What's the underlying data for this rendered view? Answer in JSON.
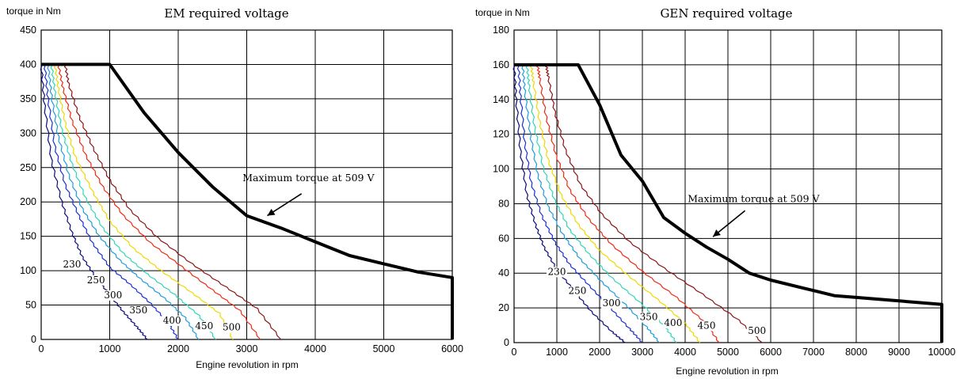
{
  "chart_data": [
    {
      "type": "line",
      "title": "EM required voltage",
      "ylabel": "torque in Nm",
      "xlabel": "Engine revolution in rpm",
      "xlim": [
        0,
        6000
      ],
      "ylim": [
        0,
        450
      ],
      "xticks": [
        "0",
        "1000",
        "2000",
        "3000",
        "4000",
        "5000",
        "6000"
      ],
      "yticks": [
        "0",
        "50",
        "100",
        "150",
        "200",
        "250",
        "300",
        "350",
        "400",
        "450"
      ],
      "grid": true,
      "annotation": {
        "text": "Maximum torque at 509 V",
        "text_at": [
          3900,
          230
        ],
        "arrow_from": [
          3800,
          212
        ],
        "arrow_to": [
          3300,
          180
        ]
      },
      "max_torque": {
        "x": [
          0,
          1000,
          1500,
          2000,
          2500,
          3000,
          3500,
          4000,
          4500,
          5000,
          5500,
          6000,
          6000
        ],
        "y": [
          400,
          400,
          330,
          272,
          222,
          180,
          162,
          142,
          122,
          110,
          98,
          90,
          0
        ]
      },
      "series": [
        {
          "color": "#0a0a7a",
          "x": [
            0,
            50,
            150,
            300,
            450,
            600,
            800,
            1000,
            1200,
            1400,
            1550
          ],
          "y": [
            400,
            340,
            260,
            200,
            155,
            120,
            90,
            65,
            40,
            18,
            0
          ]
        },
        {
          "color": "#1a2fd4",
          "x": [
            50,
            100,
            200,
            350,
            550,
            750,
            1000,
            1300,
            1600,
            1850,
            2000
          ],
          "y": [
            400,
            350,
            280,
            225,
            180,
            140,
            105,
            80,
            52,
            25,
            0
          ]
        },
        {
          "color": "#1f9be0",
          "x": [
            100,
            150,
            250,
            400,
            600,
            850,
            1150,
            1450,
            1800,
            2100,
            2300
          ],
          "y": [
            400,
            355,
            295,
            240,
            190,
            150,
            115,
            88,
            60,
            32,
            0
          ]
        },
        {
          "color": "#2fd6b5",
          "x": [
            150,
            200,
            300,
            450,
            650,
            900,
            1200,
            1550,
            1950,
            2300,
            2550
          ],
          "y": [
            400,
            360,
            305,
            255,
            205,
            162,
            125,
            95,
            65,
            35,
            0
          ]
        },
        {
          "color": "#f0d800",
          "x": [
            200,
            250,
            350,
            500,
            750,
            1000,
            1350,
            1750,
            2200,
            2600,
            2800
          ],
          "y": [
            400,
            365,
            315,
            265,
            215,
            172,
            132,
            100,
            68,
            38,
            0
          ]
        },
        {
          "color": "#ee2a12",
          "x": [
            250,
            320,
            450,
            650,
            900,
            1200,
            1600,
            2050,
            2500,
            2900,
            3200
          ],
          "y": [
            400,
            365,
            318,
            268,
            222,
            180,
            140,
            106,
            72,
            42,
            0
          ]
        },
        {
          "color": "#8b1414",
          "x": [
            350,
            400,
            550,
            750,
            1000,
            1300,
            1700,
            2200,
            2700,
            3150,
            3500
          ],
          "y": [
            400,
            372,
            325,
            280,
            232,
            188,
            148,
            110,
            76,
            45,
            0
          ]
        }
      ],
      "contour_labels": [
        {
          "text": "230",
          "x": 450,
          "y": 105
        },
        {
          "text": "250",
          "x": 800,
          "y": 82
        },
        {
          "text": "300",
          "x": 1050,
          "y": 60
        },
        {
          "text": "350",
          "x": 1420,
          "y": 38
        },
        {
          "text": "400",
          "x": 1910,
          "y": 23
        },
        {
          "text": "450",
          "x": 2380,
          "y": 15
        },
        {
          "text": "500",
          "x": 2780,
          "y": 13
        }
      ]
    },
    {
      "type": "line",
      "title": "GEN  required voltage",
      "ylabel": "torque in Nm",
      "xlabel": "Engine revolution in rpm",
      "xlim": [
        0,
        10000
      ],
      "ylim": [
        0,
        180
      ],
      "xticks": [
        "0",
        "1000",
        "2000",
        "3000",
        "4000",
        "5000",
        "6000",
        "7000",
        "8000",
        "9000",
        "10000"
      ],
      "yticks": [
        "0",
        "20",
        "40",
        "60",
        "80",
        "100",
        "120",
        "140",
        "160",
        "180"
      ],
      "grid": true,
      "annotation": {
        "text": "Maximum torque at 509 V",
        "text_at": [
          5600,
          81
        ],
        "arrow_from": [
          5400,
          76
        ],
        "arrow_to": [
          4650,
          61
        ]
      },
      "max_torque": {
        "x": [
          0,
          1500,
          2000,
          2500,
          3000,
          3500,
          4000,
          4500,
          5000,
          5500,
          6000,
          7000,
          7500,
          8000,
          9000,
          10000,
          10000
        ],
        "y": [
          160,
          160,
          137,
          108,
          93,
          72,
          63,
          55,
          48,
          40,
          36,
          30,
          27,
          26,
          24,
          22,
          0
        ]
      },
      "series": [
        {
          "color": "#0a0a7a",
          "x": [
            0,
            50,
            150,
            300,
            500,
            700,
            1000,
            1400,
            1800,
            2300,
            2600
          ],
          "y": [
            160,
            140,
            110,
            85,
            68,
            55,
            42,
            30,
            18,
            6,
            0
          ]
        },
        {
          "color": "#1a2fd4",
          "x": [
            100,
            150,
            250,
            400,
            650,
            950,
            1300,
            1750,
            2250,
            2700,
            3000
          ],
          "y": [
            160,
            142,
            115,
            92,
            73,
            58,
            45,
            33,
            20,
            8,
            0
          ]
        },
        {
          "color": "#1f9be0",
          "x": [
            200,
            250,
            380,
            550,
            800,
            1150,
            1550,
            2050,
            2600,
            3100,
            3400
          ],
          "y": [
            160,
            145,
            120,
            97,
            78,
            62,
            48,
            35,
            22,
            9,
            0
          ]
        },
        {
          "color": "#2fd6b5",
          "x": [
            300,
            350,
            480,
            680,
            950,
            1300,
            1750,
            2300,
            2950,
            3500,
            3800
          ],
          "y": [
            160,
            148,
            124,
            101,
            82,
            65,
            51,
            37,
            23,
            10,
            0
          ]
        },
        {
          "color": "#f0d800",
          "x": [
            400,
            450,
            600,
            800,
            1100,
            1500,
            2000,
            2650,
            3350,
            4000,
            4350
          ],
          "y": [
            160,
            150,
            127,
            105,
            85,
            68,
            53,
            39,
            25,
            11,
            0
          ]
        },
        {
          "color": "#ee2a12",
          "x": [
            550,
            600,
            750,
            980,
            1300,
            1750,
            2300,
            3000,
            3800,
            4450,
            4800
          ],
          "y": [
            160,
            152,
            130,
            108,
            88,
            71,
            56,
            41,
            26,
            12,
            0
          ]
        },
        {
          "color": "#8b1414",
          "x": [
            750,
            800,
            950,
            1200,
            1550,
            2050,
            2700,
            3500,
            4400,
            5250,
            5800
          ],
          "y": [
            160,
            153,
            133,
            111,
            91,
            74,
            58,
            43,
            28,
            13,
            0
          ]
        }
      ],
      "contour_labels": [
        {
          "text": "230",
          "x": 1000,
          "y": 39
        },
        {
          "text": "250",
          "x": 1480,
          "y": 28
        },
        {
          "text": "300",
          "x": 2280,
          "y": 21
        },
        {
          "text": "350",
          "x": 3150,
          "y": 13
        },
        {
          "text": "400",
          "x": 3720,
          "y": 9.5
        },
        {
          "text": "450",
          "x": 4500,
          "y": 8
        },
        {
          "text": "500",
          "x": 5680,
          "y": 5
        }
      ]
    }
  ]
}
